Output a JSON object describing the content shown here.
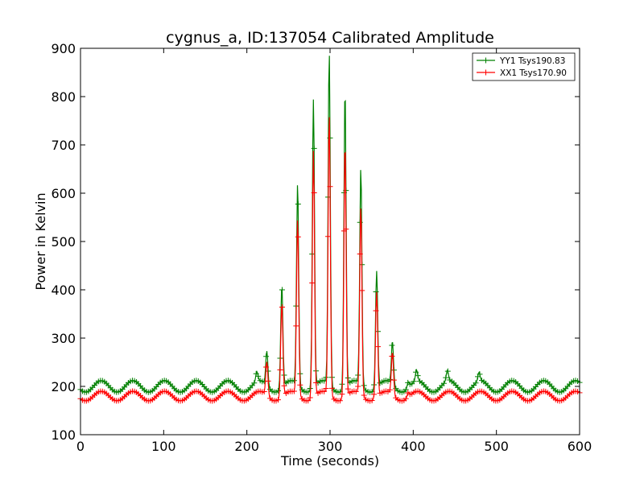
{
  "chart_data": {
    "type": "line",
    "title": "cygnus_a, ID:137054 Calibrated Amplitude",
    "xlabel": "Time (seconds)",
    "ylabel": "Power in Kelvin",
    "xlim": [
      0,
      600
    ],
    "ylim": [
      100,
      900
    ],
    "xticks": [
      0,
      100,
      200,
      300,
      400,
      500,
      600
    ],
    "yticks": [
      100,
      200,
      300,
      400,
      500,
      600,
      700,
      800,
      900
    ],
    "grid": false,
    "legend_position": "top-right",
    "marker": "plus",
    "series": [
      {
        "name": "YY1 Tsys190.83",
        "color": "#008000",
        "baseline": 200,
        "ripple_amplitude": 12,
        "ripple_period_s": 38,
        "ripple_phase_s": 25,
        "peaks": [
          {
            "x": 212,
            "y": 220
          },
          {
            "x": 224,
            "y": 272
          },
          {
            "x": 242,
            "y": 412
          },
          {
            "x": 261,
            "y": 618
          },
          {
            "x": 280,
            "y": 797
          },
          {
            "x": 299,
            "y": 890
          },
          {
            "x": 318,
            "y": 822
          },
          {
            "x": 337,
            "y": 650
          },
          {
            "x": 356,
            "y": 442
          },
          {
            "x": 375,
            "y": 290
          },
          {
            "x": 394,
            "y": 212
          },
          {
            "x": 404,
            "y": 222
          },
          {
            "x": 441,
            "y": 222
          },
          {
            "x": 479,
            "y": 218
          }
        ]
      },
      {
        "name": "XX1 Tsys170.90",
        "color": "#ff0000",
        "baseline": 180,
        "ripple_amplitude": 10,
        "ripple_period_s": 38,
        "ripple_phase_s": 25,
        "peaks": [
          {
            "x": 224,
            "y": 250
          },
          {
            "x": 242,
            "y": 375
          },
          {
            "x": 261,
            "y": 545
          },
          {
            "x": 280,
            "y": 690
          },
          {
            "x": 299,
            "y": 762
          },
          {
            "x": 318,
            "y": 710
          },
          {
            "x": 337,
            "y": 570
          },
          {
            "x": 356,
            "y": 398
          },
          {
            "x": 375,
            "y": 268
          },
          {
            "x": 394,
            "y": 190
          }
        ]
      }
    ]
  }
}
